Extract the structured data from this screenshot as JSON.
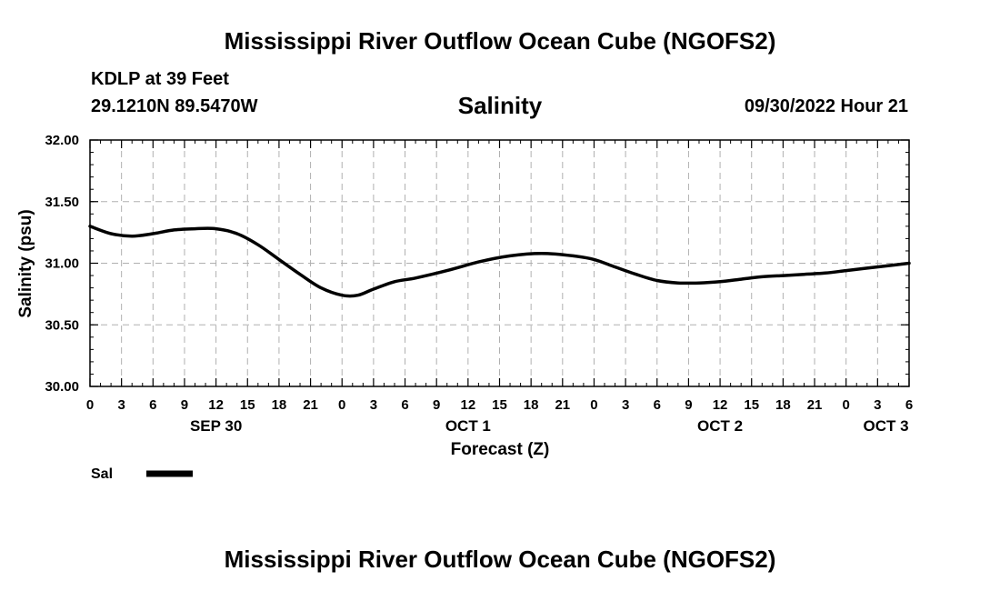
{
  "header": {
    "title": "Mississippi River Outflow Ocean Cube (NGOFS2)",
    "station": "KDLP at 39 Feet",
    "coords": "29.1210N  89.5470W",
    "variable": "Salinity",
    "issued": "09/30/2022 Hour 21"
  },
  "footer": {
    "title": "Mississippi River Outflow Ocean Cube (NGOFS2)"
  },
  "legend": {
    "label": "Sal"
  },
  "chart_data": {
    "type": "line",
    "title": "Salinity",
    "xlabel": "Forecast (Z)",
    "ylabel": "Salinity (psu)",
    "ylim": [
      30.0,
      32.0
    ],
    "yticks": [
      "30.00",
      "30.50",
      "31.00",
      "31.50",
      "32.00"
    ],
    "xlim": [
      0,
      78
    ],
    "xticks": [
      0,
      3,
      6,
      9,
      12,
      15,
      18,
      21,
      24,
      27,
      30,
      33,
      36,
      39,
      42,
      45,
      48,
      51,
      54,
      57,
      60,
      63,
      66,
      69,
      72,
      75,
      78
    ],
    "xtick_labels": [
      "0",
      "3",
      "6",
      "9",
      "12",
      "15",
      "18",
      "21",
      "0",
      "3",
      "6",
      "9",
      "12",
      "15",
      "18",
      "21",
      "0",
      "3",
      "6",
      "9",
      "12",
      "15",
      "18",
      "21",
      "0",
      "3",
      "6"
    ],
    "day_labels": [
      {
        "label": "SEP 30",
        "hour": 12
      },
      {
        "label": "OCT 1",
        "hour": 36
      },
      {
        "label": "OCT 2",
        "hour": 60
      },
      {
        "label": "OCT 3",
        "hour": 75.8
      }
    ],
    "grid": true,
    "legend_position": "bottom-left",
    "series": [
      {
        "name": "Sal",
        "x": [
          0,
          2,
          4,
          6,
          8,
          10,
          12,
          14,
          16,
          18,
          20,
          22,
          24,
          25.5,
          27,
          29,
          31,
          34,
          37,
          40,
          43,
          46,
          48,
          50,
          52,
          54,
          56,
          58,
          60,
          62,
          64,
          66,
          68,
          70,
          72,
          74,
          76,
          78
        ],
        "values": [
          31.3,
          31.24,
          31.22,
          31.24,
          31.27,
          31.28,
          31.28,
          31.24,
          31.15,
          31.03,
          30.91,
          30.8,
          30.74,
          30.74,
          30.79,
          30.85,
          30.88,
          30.94,
          31.01,
          31.06,
          31.08,
          31.06,
          31.03,
          30.97,
          30.91,
          30.86,
          30.84,
          30.84,
          30.85,
          30.87,
          30.89,
          30.9,
          30.91,
          30.92,
          30.94,
          30.96,
          30.98,
          31.0
        ]
      }
    ]
  }
}
